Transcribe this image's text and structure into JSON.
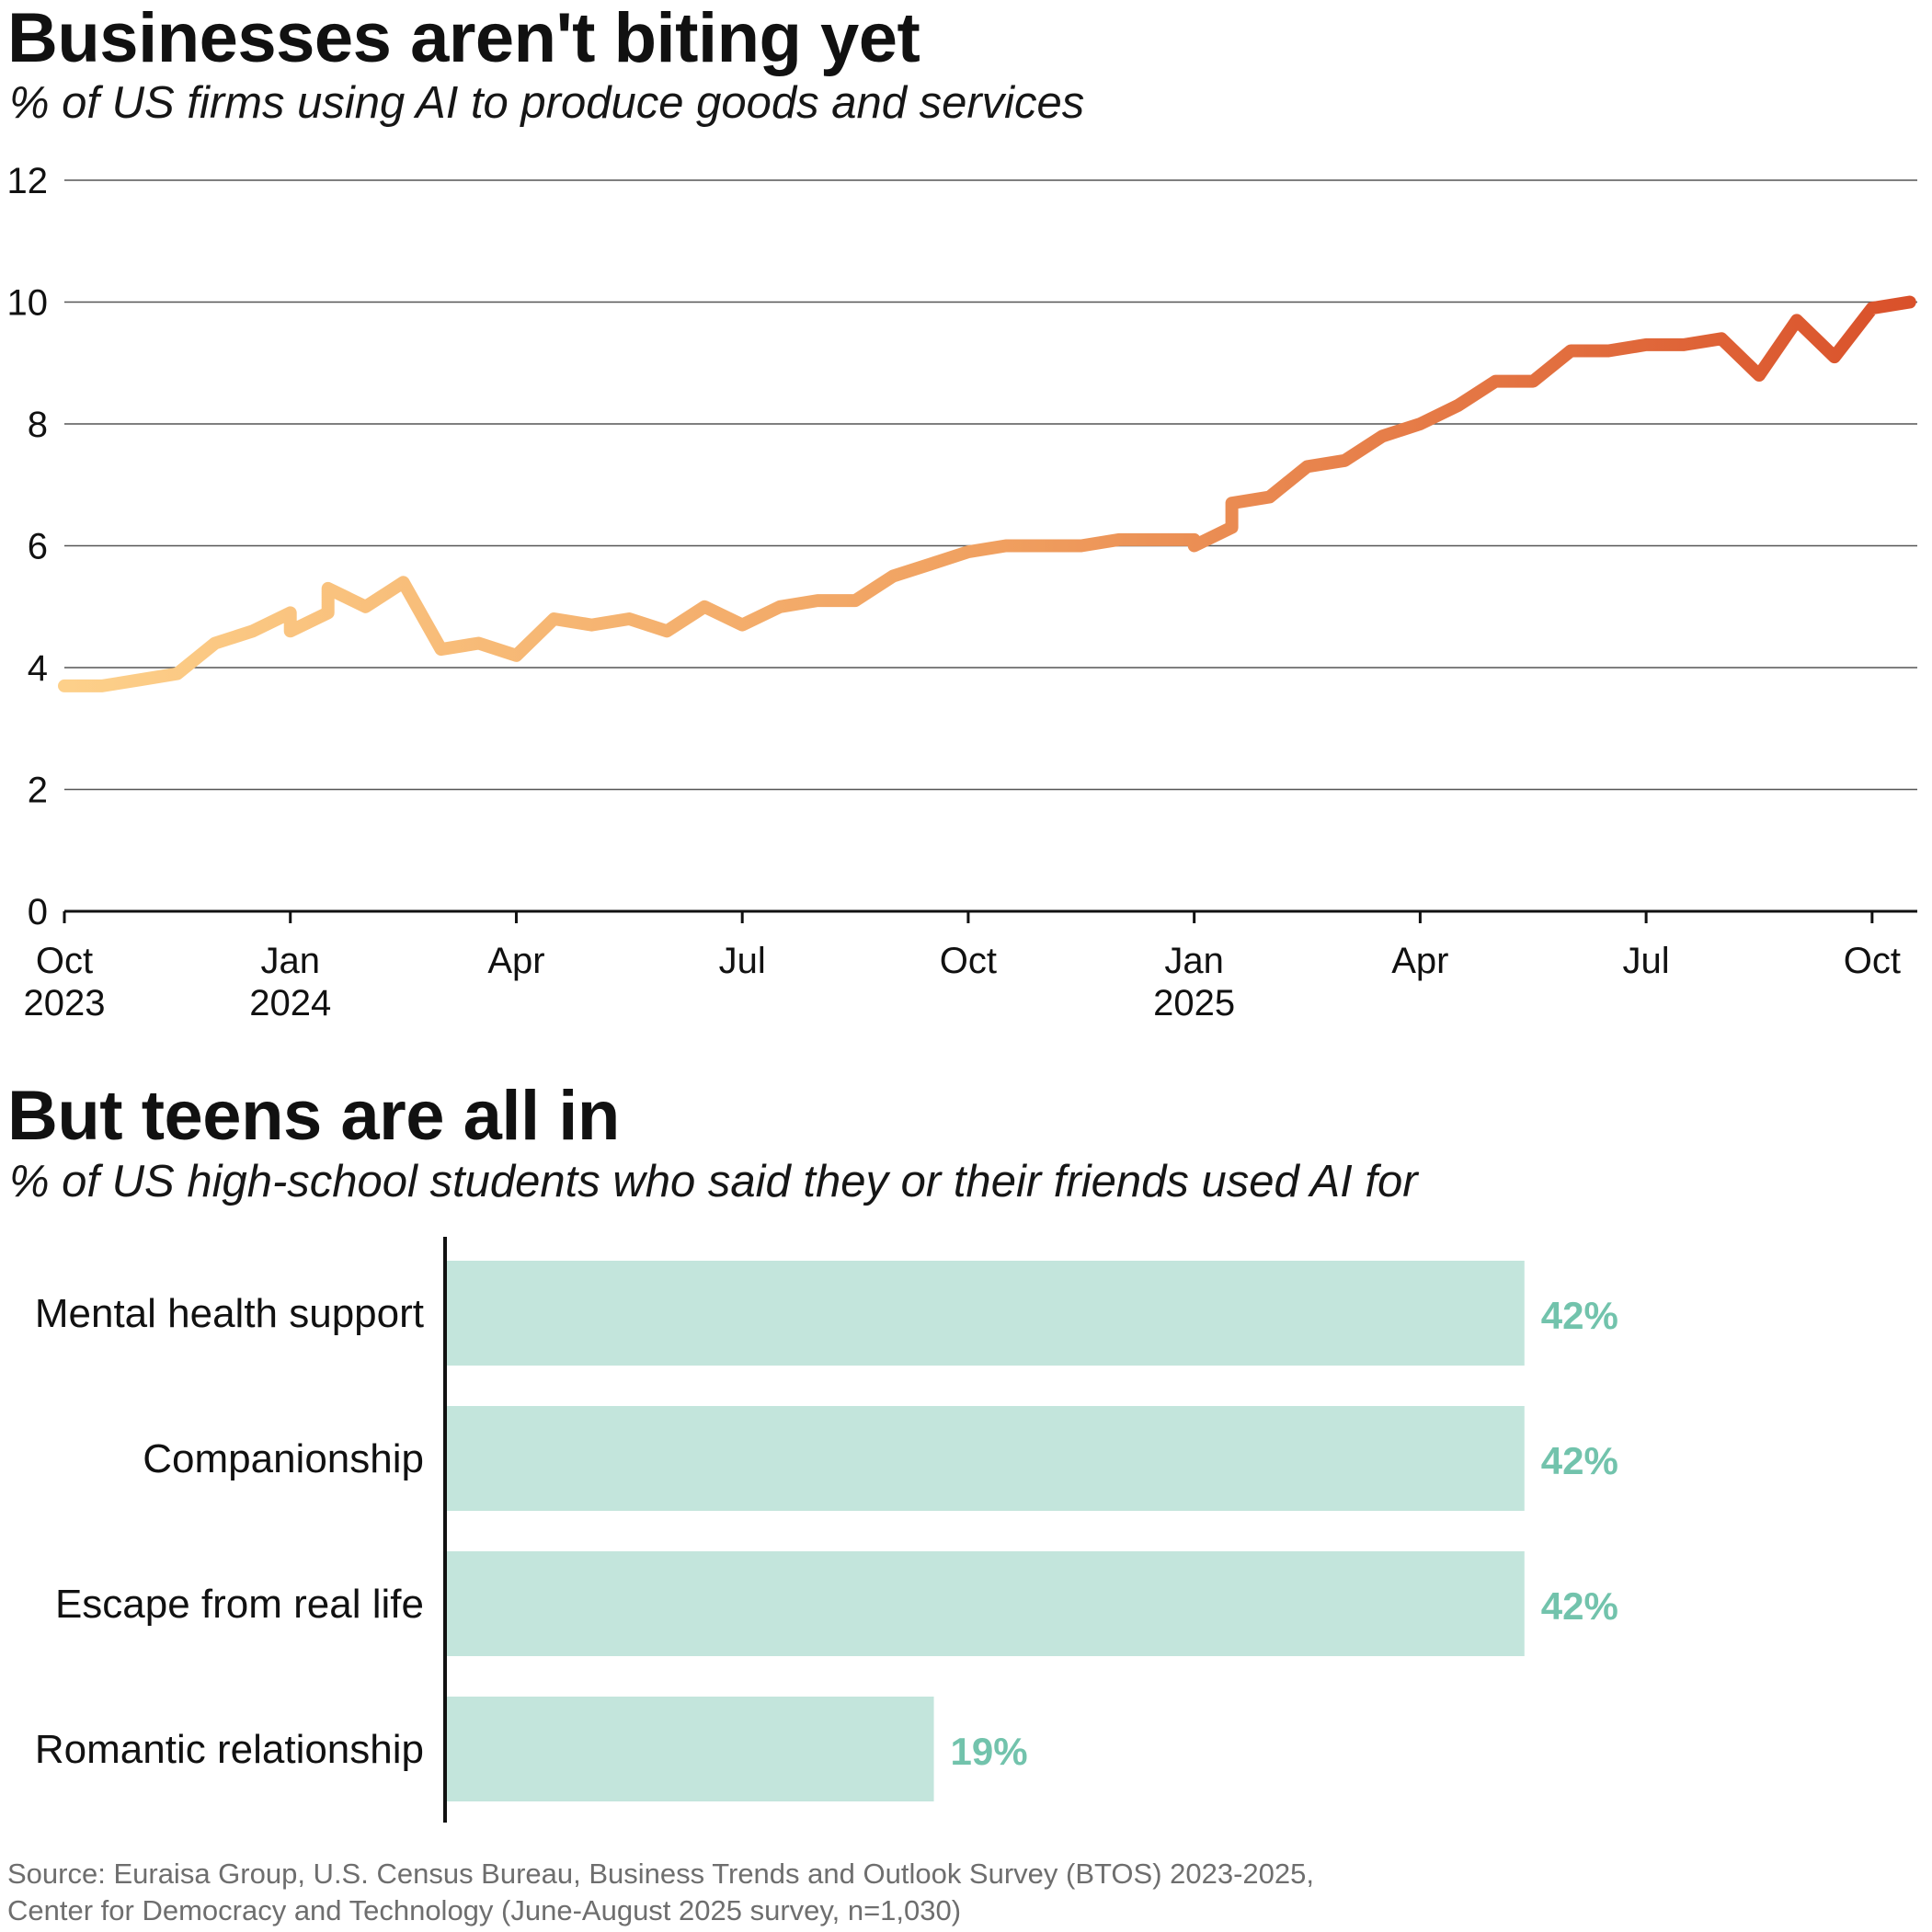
{
  "chart_data": [
    {
      "type": "line",
      "title": "Businesses aren't biting yet",
      "subtitle": "% of US firms using AI to produce goods and services",
      "xlabel": "",
      "ylabel": "",
      "ylim": [
        0,
        12
      ],
      "yticks": [
        "0",
        "2",
        "4",
        "6",
        "8",
        "10",
        "12"
      ],
      "xrange_months": [
        0,
        24.6
      ],
      "xticks": [
        {
          "month": 0,
          "label": "Oct",
          "year": "2023"
        },
        {
          "month": 3,
          "label": "Jan",
          "year": "2024"
        },
        {
          "month": 6,
          "label": "Apr",
          "year": ""
        },
        {
          "month": 9,
          "label": "Jul",
          "year": ""
        },
        {
          "month": 12,
          "label": "Oct",
          "year": ""
        },
        {
          "month": 15,
          "label": "Jan",
          "year": "2025"
        },
        {
          "month": 18,
          "label": "Apr",
          "year": ""
        },
        {
          "month": 21,
          "label": "Jul",
          "year": ""
        },
        {
          "month": 24,
          "label": "Oct",
          "year": ""
        }
      ],
      "grid": true,
      "color_start": "#fdd08a",
      "color_end": "#d9502a",
      "series": [
        {
          "name": "US firms using AI (%)",
          "x": [
            0.0,
            0.5,
            1.0,
            1.5,
            2.0,
            2.5,
            3.0,
            3.0,
            3.5,
            3.5,
            4.0,
            4.5,
            5.0,
            5.5,
            6.0,
            6.5,
            7.0,
            7.5,
            8.0,
            8.5,
            9.0,
            9.5,
            10.0,
            10.5,
            11.0,
            11.5,
            12.0,
            12.5,
            13.0,
            13.5,
            14.0,
            14.5,
            15.0,
            15.0,
            15.5,
            15.5,
            16.0,
            16.5,
            17.0,
            17.5,
            18.0,
            18.5,
            19.0,
            19.5,
            20.0,
            20.5,
            21.0,
            21.5,
            22.0,
            22.5,
            23.0,
            23.5,
            24.0,
            24.5
          ],
          "values": [
            3.7,
            3.7,
            3.8,
            3.9,
            4.4,
            4.6,
            4.9,
            4.6,
            4.9,
            5.3,
            5.0,
            5.4,
            4.3,
            4.4,
            4.2,
            4.8,
            4.7,
            4.8,
            4.6,
            5.0,
            4.7,
            5.0,
            5.1,
            5.1,
            5.5,
            5.7,
            5.9,
            6.0,
            6.0,
            6.0,
            6.1,
            6.1,
            6.1,
            6.0,
            6.3,
            6.7,
            6.8,
            7.3,
            7.4,
            7.8,
            8.0,
            8.3,
            8.7,
            8.7,
            9.2,
            9.2,
            9.3,
            9.3,
            9.4,
            8.8,
            9.7,
            9.1,
            9.9,
            10.0
          ]
        }
      ]
    },
    {
      "type": "bar",
      "orientation": "horizontal",
      "title": "But teens are all in",
      "subtitle": "% of US high-school students who said they or their friends used AI for",
      "categories": [
        "Mental health support",
        "Companionship",
        "Escape from real life",
        "Romantic relationship"
      ],
      "values": [
        42,
        42,
        42,
        19
      ],
      "value_labels": [
        "42%",
        "42%",
        "42%",
        "19%"
      ],
      "xlim": [
        0,
        52
      ],
      "bar_color": "#c3e5dc",
      "label_color": "#72c3ac",
      "axis_color": "#111111"
    }
  ],
  "source_lines": [
    "Source: Euraisa Group, U.S. Census Bureau, Business Trends and Outlook Survey (BTOS) 2023-2025,",
    "Center for Democracy and Technology (June-August 2025 survey, n=1,030)"
  ]
}
